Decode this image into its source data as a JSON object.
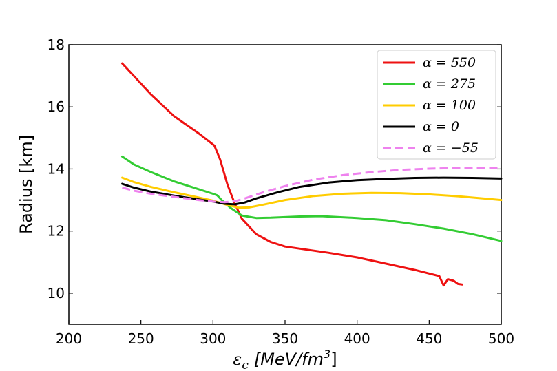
{
  "chart_data": {
    "type": "line",
    "title": "",
    "xlabel": "ε_c [MeV/fm³]",
    "xlabel_main": "ε",
    "xlabel_sub": "c",
    "xlabel_unit": "[MeV/fm",
    "xlabel_sup": "3",
    "xlabel_close": "]",
    "ylabel": "Radius [km]",
    "xlim": [
      200,
      500
    ],
    "ylim": [
      9,
      18
    ],
    "xticks": [
      "200",
      "250",
      "300",
      "350",
      "400",
      "450",
      "500"
    ],
    "yticks": [
      "10",
      "12",
      "14",
      "16",
      "18"
    ],
    "grid": false,
    "legend_position": "top-right",
    "series": [
      {
        "name": "α = 550",
        "color": "#ee1111",
        "dashed": false,
        "points": [
          [
            237,
            17.4
          ],
          [
            245,
            17.0
          ],
          [
            257,
            16.4
          ],
          [
            273,
            15.7
          ],
          [
            290,
            15.15
          ],
          [
            301,
            14.75
          ],
          [
            305,
            14.3
          ],
          [
            310,
            13.5
          ],
          [
            315,
            12.9
          ],
          [
            320,
            12.4
          ],
          [
            330,
            11.9
          ],
          [
            340,
            11.65
          ],
          [
            350,
            11.5
          ],
          [
            365,
            11.4
          ],
          [
            380,
            11.3
          ],
          [
            400,
            11.15
          ],
          [
            420,
            10.95
          ],
          [
            440,
            10.75
          ],
          [
            457,
            10.55
          ],
          [
            460,
            10.25
          ],
          [
            463,
            10.45
          ],
          [
            467,
            10.4
          ],
          [
            470,
            10.3
          ],
          [
            473,
            10.28
          ]
        ]
      },
      {
        "name": "α = 275",
        "color": "#33cc33",
        "dashed": false,
        "points": [
          [
            237,
            14.4
          ],
          [
            245,
            14.15
          ],
          [
            257,
            13.9
          ],
          [
            273,
            13.6
          ],
          [
            290,
            13.35
          ],
          [
            300,
            13.2
          ],
          [
            303,
            13.15
          ],
          [
            306,
            13.0
          ],
          [
            312,
            12.75
          ],
          [
            320,
            12.5
          ],
          [
            330,
            12.42
          ],
          [
            340,
            12.43
          ],
          [
            360,
            12.47
          ],
          [
            375,
            12.48
          ],
          [
            400,
            12.42
          ],
          [
            420,
            12.35
          ],
          [
            440,
            12.22
          ],
          [
            460,
            12.08
          ],
          [
            480,
            11.9
          ],
          [
            500,
            11.68
          ]
        ]
      },
      {
        "name": "α = 100",
        "color": "#ffcc00",
        "dashed": false,
        "points": [
          [
            237,
            13.72
          ],
          [
            245,
            13.58
          ],
          [
            257,
            13.42
          ],
          [
            273,
            13.25
          ],
          [
            290,
            13.08
          ],
          [
            300,
            12.98
          ],
          [
            310,
            12.84
          ],
          [
            318,
            12.75
          ],
          [
            325,
            12.76
          ],
          [
            335,
            12.85
          ],
          [
            350,
            13.0
          ],
          [
            370,
            13.13
          ],
          [
            390,
            13.2
          ],
          [
            410,
            13.23
          ],
          [
            430,
            13.22
          ],
          [
            450,
            13.18
          ],
          [
            470,
            13.12
          ],
          [
            490,
            13.04
          ],
          [
            500,
            13.0
          ]
        ]
      },
      {
        "name": "α = 0",
        "color": "#000000",
        "dashed": false,
        "points": [
          [
            237,
            13.52
          ],
          [
            245,
            13.4
          ],
          [
            257,
            13.27
          ],
          [
            273,
            13.14
          ],
          [
            290,
            13.02
          ],
          [
            300,
            12.95
          ],
          [
            308,
            12.88
          ],
          [
            315,
            12.86
          ],
          [
            322,
            12.92
          ],
          [
            330,
            13.05
          ],
          [
            345,
            13.25
          ],
          [
            360,
            13.42
          ],
          [
            380,
            13.56
          ],
          [
            400,
            13.64
          ],
          [
            420,
            13.68
          ],
          [
            440,
            13.71
          ],
          [
            460,
            13.72
          ],
          [
            480,
            13.71
          ],
          [
            500,
            13.69
          ]
        ]
      },
      {
        "name": "α = −55",
        "color": "#ee82ee",
        "dashed": true,
        "points": [
          [
            237,
            13.4
          ],
          [
            245,
            13.3
          ],
          [
            257,
            13.2
          ],
          [
            273,
            13.1
          ],
          [
            290,
            13.0
          ],
          [
            300,
            12.95
          ],
          [
            308,
            12.93
          ],
          [
            315,
            12.96
          ],
          [
            322,
            13.05
          ],
          [
            335,
            13.25
          ],
          [
            350,
            13.45
          ],
          [
            370,
            13.66
          ],
          [
            390,
            13.8
          ],
          [
            410,
            13.9
          ],
          [
            430,
            13.97
          ],
          [
            450,
            14.01
          ],
          [
            470,
            14.03
          ],
          [
            490,
            14.04
          ],
          [
            500,
            14.04
          ]
        ]
      }
    ]
  }
}
